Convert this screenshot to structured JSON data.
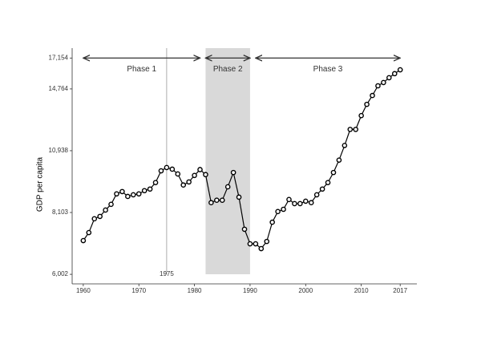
{
  "chart_data": {
    "type": "line",
    "y_label": "GDP per capita",
    "x": [
      1960,
      1961,
      1962,
      1963,
      1964,
      1965,
      1966,
      1967,
      1968,
      1969,
      1970,
      1971,
      1972,
      1973,
      1974,
      1975,
      1976,
      1977,
      1978,
      1979,
      1980,
      1981,
      1982,
      1983,
      1984,
      1985,
      1986,
      1987,
      1988,
      1989,
      1990,
      1991,
      1992,
      1993,
      1994,
      1995,
      1996,
      1997,
      1998,
      1999,
      2000,
      2001,
      2002,
      2003,
      2004,
      2005,
      2006,
      2007,
      2008,
      2009,
      2010,
      2011,
      2012,
      2013,
      2014,
      2015,
      2016,
      2017
    ],
    "values": [
      7070,
      7350,
      7860,
      7950,
      8200,
      8430,
      8870,
      8970,
      8760,
      8830,
      8870,
      9010,
      9080,
      9370,
      9920,
      10080,
      10000,
      9770,
      9260,
      9400,
      9700,
      9980,
      9740,
      8500,
      8600,
      8600,
      9180,
      9840,
      8730,
      7470,
      6960,
      6960,
      6800,
      7040,
      7730,
      8140,
      8230,
      8630,
      8460,
      8460,
      8560,
      8500,
      8830,
      9080,
      9370,
      9840,
      10450,
      11220,
      12130,
      12130,
      12970,
      13700,
      14300,
      14990,
      15230,
      15590,
      15900,
      16200
    ],
    "color": "#000000",
    "log_y": true,
    "xlim": [
      1958,
      2020
    ],
    "ylim": [
      5730,
      18000
    ],
    "xticks": [
      1960,
      1970,
      1980,
      1990,
      2000,
      2010,
      2017
    ],
    "yticks": [
      {
        "value": 6002,
        "label": "6,002"
      },
      {
        "value": 8103,
        "label": "8,103"
      },
      {
        "value": 10938,
        "label": "10,938"
      },
      {
        "value": 14764,
        "label": "14,764"
      },
      {
        "value": 17154,
        "label": "17,154"
      }
    ],
    "vline": {
      "x": 1975,
      "label": "1975"
    },
    "shaded": {
      "x": [
        1982,
        1990
      ],
      "color": "#d9d9d9"
    },
    "phases": [
      {
        "label": "Phase 1",
        "x": [
          1960,
          1981
        ],
        "y": 17154
      },
      {
        "label": "Phase 2",
        "x": [
          1982,
          1990
        ],
        "y": 17154
      },
      {
        "label": "Phase 3",
        "x": [
          1991,
          2017
        ],
        "y": 17154
      }
    ]
  }
}
